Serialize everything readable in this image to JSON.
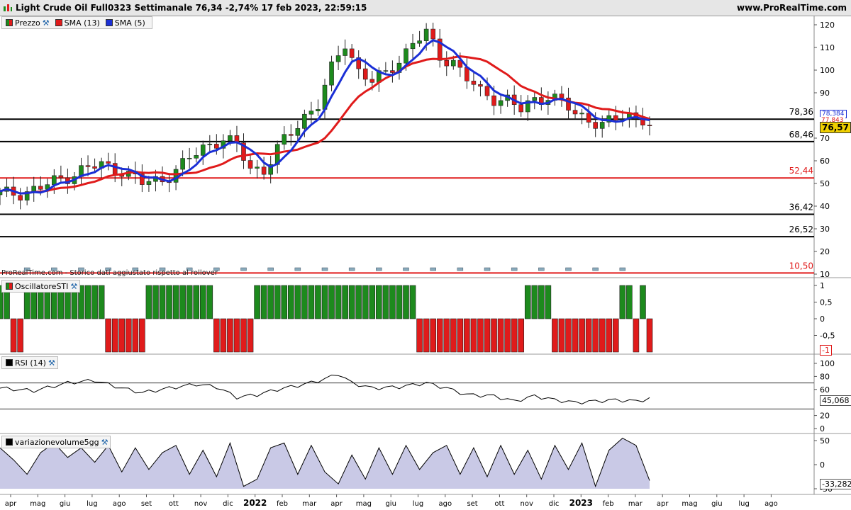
{
  "header": {
    "title": "Light Crude Oil Full0323 Settimanale 76,34 -2,74% 17 feb 2023, 22:59:15",
    "brand": "www.ProRealTime.com"
  },
  "price_panel": {
    "legend": [
      {
        "label": "Prezzo",
        "color": "#1d8a1d"
      },
      {
        "label": "SMA (13)",
        "color": "#e01b1b"
      },
      {
        "label": "SMA (5)",
        "color": "#1a2fd6"
      }
    ],
    "y_ticks": [
      "120",
      "110",
      "100",
      "90",
      "70",
      "60",
      "50",
      "40",
      "30",
      "20",
      "10"
    ],
    "levels": [
      {
        "value": 78.36,
        "label": "78,36",
        "color": "#000000"
      },
      {
        "value": 68.46,
        "label": "68,46",
        "color": "#000000"
      },
      {
        "value": 52.44,
        "label": "52,44",
        "color": "#e01b1b"
      },
      {
        "value": 36.42,
        "label": "36,42",
        "color": "#000000"
      },
      {
        "value": 26.52,
        "label": "26,52",
        "color": "#000000"
      },
      {
        "value": 10.5,
        "label": "10,50",
        "color": "#e01b1b"
      }
    ],
    "overlap_badges": [
      "78,384",
      "77,843"
    ],
    "current_price": "76,57",
    "note": "ProRealTime.com - Storico dati aggiustato rispetto al rollover"
  },
  "sti_panel": {
    "legend": "OscillatoreSTI",
    "y_ticks": [
      "1",
      "0,5",
      "0",
      "-0,5"
    ],
    "current_value": "-1"
  },
  "rsi_panel": {
    "legend": "RSI (14)",
    "y_ticks": [
      "100",
      "80",
      "60",
      "20",
      "0"
    ],
    "current_value": "45,068"
  },
  "vol_panel": {
    "legend": "variazionevolume5gg",
    "y_ticks": [
      "50",
      "0",
      "-50"
    ],
    "current_value": "-33,282"
  },
  "x_axis": {
    "labels": [
      "apr",
      "mag",
      "giu",
      "lug",
      "ago",
      "set",
      "ott",
      "nov",
      "dic",
      "2022",
      "feb",
      "mar",
      "apr",
      "mag",
      "giu",
      "lug",
      "ago",
      "set",
      "ott",
      "nov",
      "dic",
      "2023",
      "feb",
      "mar",
      "apr",
      "mag",
      "giu",
      "lug",
      "ago"
    ]
  },
  "colors": {
    "up": "#1d8a1d",
    "down": "#e01b1b",
    "sma13": "#e01b1b",
    "sma5": "#1a2fd6",
    "fill": "#c9c9e6"
  },
  "chart_data": {
    "type": "candlestick",
    "title": "Light Crude Oil Full0323 Settimanale",
    "price_path": [
      [
        0,
        45
      ],
      [
        3,
        46
      ],
      [
        6,
        48
      ],
      [
        9,
        52
      ],
      [
        12,
        56
      ],
      [
        15,
        58
      ],
      [
        18,
        56
      ],
      [
        21,
        50
      ],
      [
        24,
        52
      ],
      [
        27,
        58
      ],
      [
        30,
        66
      ],
      [
        33,
        70
      ],
      [
        35,
        66
      ],
      [
        37,
        57
      ],
      [
        39,
        56
      ],
      [
        41,
        65
      ],
      [
        43,
        72
      ],
      [
        45,
        80
      ],
      [
        47,
        85
      ],
      [
        49,
        100
      ],
      [
        51,
        112
      ],
      [
        53,
        100
      ],
      [
        55,
        95
      ],
      [
        57,
        98
      ],
      [
        59,
        105
      ],
      [
        61,
        112
      ],
      [
        63,
        116
      ],
      [
        65,
        106
      ],
      [
        67,
        104
      ],
      [
        69,
        96
      ],
      [
        71,
        90
      ],
      [
        73,
        88
      ],
      [
        75,
        87
      ],
      [
        77,
        82
      ],
      [
        79,
        87
      ],
      [
        81,
        89
      ],
      [
        83,
        86
      ],
      [
        85,
        80
      ],
      [
        87,
        79
      ],
      [
        89,
        76
      ],
      [
        91,
        78
      ],
      [
        93,
        80
      ],
      [
        95,
        79
      ],
      [
        96,
        76
      ]
    ],
    "rsi_path": [
      [
        0,
        62
      ],
      [
        5,
        58
      ],
      [
        10,
        70
      ],
      [
        14,
        74
      ],
      [
        18,
        62
      ],
      [
        21,
        55
      ],
      [
        25,
        62
      ],
      [
        29,
        68
      ],
      [
        32,
        64
      ],
      [
        35,
        48
      ],
      [
        38,
        52
      ],
      [
        41,
        60
      ],
      [
        45,
        68
      ],
      [
        48,
        76
      ],
      [
        50,
        84
      ],
      [
        52,
        70
      ],
      [
        55,
        62
      ],
      [
        59,
        64
      ],
      [
        63,
        70
      ],
      [
        66,
        62
      ],
      [
        69,
        52
      ],
      [
        73,
        50
      ],
      [
        76,
        42
      ],
      [
        79,
        50
      ],
      [
        82,
        44
      ],
      [
        85,
        40
      ],
      [
        88,
        42
      ],
      [
        91,
        44
      ],
      [
        94,
        42
      ],
      [
        96,
        46
      ]
    ],
    "volume_path": [
      [
        0,
        35
      ],
      [
        2,
        10
      ],
      [
        4,
        -20
      ],
      [
        6,
        25
      ],
      [
        8,
        45
      ],
      [
        10,
        15
      ],
      [
        12,
        35
      ],
      [
        14,
        5
      ],
      [
        16,
        40
      ],
      [
        18,
        -15
      ],
      [
        20,
        35
      ],
      [
        22,
        -10
      ],
      [
        24,
        25
      ],
      [
        26,
        40
      ],
      [
        28,
        -20
      ],
      [
        30,
        30
      ],
      [
        32,
        -25
      ],
      [
        34,
        45
      ],
      [
        36,
        -45
      ],
      [
        38,
        -30
      ],
      [
        40,
        35
      ],
      [
        42,
        45
      ],
      [
        44,
        -20
      ],
      [
        46,
        40
      ],
      [
        48,
        -15
      ],
      [
        50,
        -40
      ],
      [
        52,
        20
      ],
      [
        54,
        -30
      ],
      [
        56,
        35
      ],
      [
        58,
        -20
      ],
      [
        60,
        40
      ],
      [
        62,
        -10
      ],
      [
        64,
        25
      ],
      [
        66,
        40
      ],
      [
        68,
        -20
      ],
      [
        70,
        35
      ],
      [
        72,
        -25
      ],
      [
        74,
        40
      ],
      [
        76,
        -20
      ],
      [
        78,
        30
      ],
      [
        80,
        -30
      ],
      [
        82,
        40
      ],
      [
        84,
        -10
      ],
      [
        86,
        45
      ],
      [
        88,
        -45
      ],
      [
        90,
        30
      ],
      [
        92,
        55
      ],
      [
        94,
        40
      ],
      [
        96,
        -33
      ]
    ],
    "sti_pattern": [
      1,
      1,
      -1,
      -1,
      1,
      1,
      1,
      1,
      1,
      1,
      1,
      1,
      1,
      1,
      1,
      1,
      -1,
      -1,
      -1,
      -1,
      -1,
      -1,
      1,
      1,
      1,
      1,
      1,
      1,
      1,
      1,
      1,
      1,
      -1,
      -1,
      -1,
      -1,
      -1,
      -1,
      1,
      1,
      1,
      1,
      1,
      1,
      1,
      1,
      1,
      1,
      1,
      1,
      1,
      1,
      1,
      1,
      1,
      1,
      1,
      1,
      1,
      1,
      1,
      1,
      -1,
      -1,
      -1,
      -1,
      -1,
      -1,
      -1,
      -1,
      -1,
      -1,
      -1,
      -1,
      -1,
      -1,
      -1,
      -1,
      1,
      1,
      1,
      1,
      -1,
      -1,
      -1,
      -1,
      -1,
      -1,
      -1,
      -1,
      -1,
      -1,
      1,
      1,
      -1,
      1,
      -1
    ]
  }
}
